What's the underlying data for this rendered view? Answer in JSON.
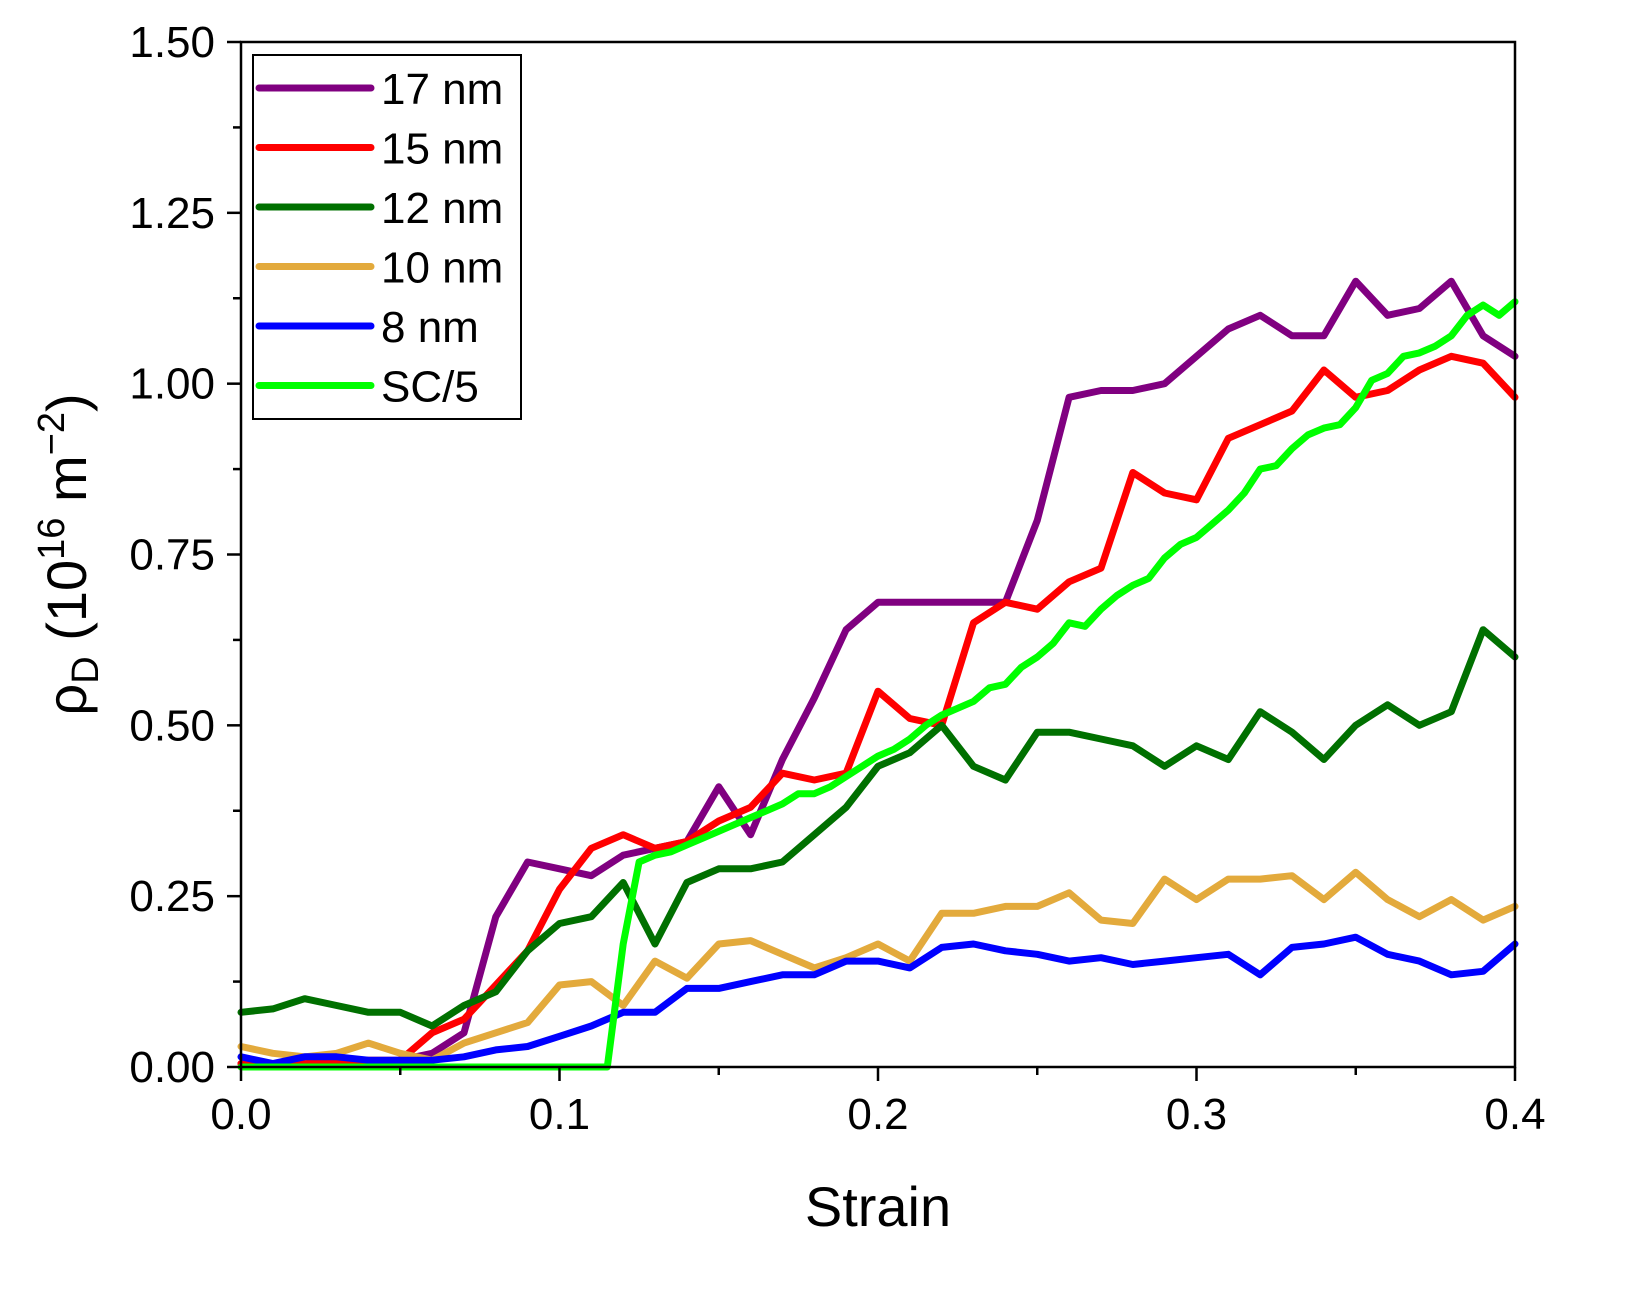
{
  "chart_data": {
    "type": "line",
    "title": "",
    "xlabel": "Strain",
    "ylabel": {
      "rho": "ρ",
      "sub": "D",
      "open": " (10",
      "exp": "16",
      "unit": " m",
      "unit_exp": "−2",
      "close": ")"
    },
    "xlim": [
      0.0,
      0.4
    ],
    "ylim": [
      0.0,
      1.5
    ],
    "xticks": [
      "0.0",
      "0.1",
      "0.2",
      "0.3",
      "0.4"
    ],
    "xtick_values": [
      0.0,
      0.1,
      0.2,
      0.3,
      0.4
    ],
    "yticks": [
      "0.00",
      "0.25",
      "0.50",
      "0.75",
      "1.00",
      "1.25",
      "1.50"
    ],
    "ytick_values": [
      0.0,
      0.25,
      0.5,
      0.75,
      1.0,
      1.25,
      1.5
    ],
    "grid": false,
    "legend_position": "top-left",
    "x": [
      0.0,
      0.01,
      0.02,
      0.03,
      0.04,
      0.05,
      0.06,
      0.07,
      0.08,
      0.09,
      0.1,
      0.11,
      0.12,
      0.13,
      0.14,
      0.15,
      0.16,
      0.17,
      0.18,
      0.19,
      0.2,
      0.21,
      0.22,
      0.23,
      0.24,
      0.25,
      0.26,
      0.27,
      0.28,
      0.29,
      0.3,
      0.31,
      0.32,
      0.33,
      0.34,
      0.35,
      0.36,
      0.37,
      0.38,
      0.39,
      0.4
    ],
    "series": [
      {
        "name": "17 nm",
        "color": "#800080",
        "x": [
          0.0,
          0.01,
          0.02,
          0.03,
          0.04,
          0.05,
          0.06,
          0.07,
          0.08,
          0.09,
          0.1,
          0.11,
          0.12,
          0.13,
          0.14,
          0.15,
          0.16,
          0.17,
          0.18,
          0.19,
          0.2,
          0.21,
          0.22,
          0.23,
          0.24,
          0.25,
          0.26,
          0.27,
          0.28,
          0.29,
          0.3,
          0.31,
          0.32,
          0.33,
          0.34,
          0.35,
          0.36,
          0.37,
          0.38,
          0.39,
          0.4
        ],
        "values": [
          0.005,
          0.005,
          0.003,
          0.01,
          0.002,
          0.01,
          0.02,
          0.05,
          0.22,
          0.3,
          0.29,
          0.28,
          0.31,
          0.32,
          0.33,
          0.41,
          0.34,
          0.45,
          0.54,
          0.64,
          0.68,
          0.68,
          0.68,
          0.68,
          0.68,
          0.8,
          0.98,
          0.99,
          0.99,
          1.0,
          1.04,
          1.08,
          1.1,
          1.07,
          1.07,
          1.15,
          1.1,
          1.11,
          1.15,
          1.07,
          1.04
        ]
      },
      {
        "name": "15 nm",
        "color": "#ff0000",
        "x": [
          0.0,
          0.01,
          0.02,
          0.03,
          0.04,
          0.05,
          0.06,
          0.07,
          0.08,
          0.09,
          0.1,
          0.11,
          0.12,
          0.13,
          0.14,
          0.15,
          0.16,
          0.17,
          0.18,
          0.19,
          0.2,
          0.21,
          0.22,
          0.23,
          0.24,
          0.25,
          0.26,
          0.27,
          0.28,
          0.29,
          0.3,
          0.31,
          0.32,
          0.33,
          0.34,
          0.35,
          0.36,
          0.37,
          0.38,
          0.39,
          0.4
        ],
        "values": [
          0.005,
          0.005,
          0.005,
          0.01,
          0.01,
          0.01,
          0.05,
          0.07,
          0.12,
          0.17,
          0.26,
          0.32,
          0.34,
          0.32,
          0.33,
          0.36,
          0.38,
          0.43,
          0.42,
          0.43,
          0.55,
          0.51,
          0.5,
          0.65,
          0.68,
          0.67,
          0.71,
          0.73,
          0.87,
          0.84,
          0.83,
          0.92,
          0.94,
          0.96,
          1.02,
          0.98,
          0.99,
          1.02,
          1.04,
          1.03,
          0.98
        ]
      },
      {
        "name": "12 nm",
        "color": "#007000",
        "x": [
          0.0,
          0.01,
          0.02,
          0.03,
          0.04,
          0.05,
          0.06,
          0.07,
          0.08,
          0.09,
          0.1,
          0.11,
          0.12,
          0.13,
          0.14,
          0.15,
          0.16,
          0.17,
          0.18,
          0.19,
          0.2,
          0.21,
          0.22,
          0.23,
          0.24,
          0.25,
          0.26,
          0.27,
          0.28,
          0.29,
          0.3,
          0.31,
          0.32,
          0.33,
          0.34,
          0.35,
          0.36,
          0.37,
          0.38,
          0.39,
          0.4
        ],
        "values": [
          0.08,
          0.085,
          0.1,
          0.09,
          0.08,
          0.08,
          0.06,
          0.09,
          0.11,
          0.17,
          0.21,
          0.22,
          0.27,
          0.18,
          0.27,
          0.29,
          0.29,
          0.3,
          0.34,
          0.38,
          0.44,
          0.46,
          0.5,
          0.44,
          0.42,
          0.49,
          0.49,
          0.48,
          0.47,
          0.44,
          0.47,
          0.45,
          0.52,
          0.49,
          0.45,
          0.5,
          0.53,
          0.5,
          0.52,
          0.64,
          0.6
        ]
      },
      {
        "name": "10 nm",
        "color": "#e3aa3c",
        "x": [
          0.0,
          0.01,
          0.02,
          0.03,
          0.04,
          0.05,
          0.06,
          0.07,
          0.08,
          0.09,
          0.1,
          0.11,
          0.12,
          0.13,
          0.14,
          0.15,
          0.16,
          0.17,
          0.18,
          0.19,
          0.2,
          0.21,
          0.22,
          0.23,
          0.24,
          0.25,
          0.26,
          0.27,
          0.28,
          0.29,
          0.3,
          0.31,
          0.32,
          0.33,
          0.34,
          0.35,
          0.36,
          0.37,
          0.38,
          0.39,
          0.4
        ],
        "values": [
          0.03,
          0.02,
          0.015,
          0.02,
          0.035,
          0.02,
          0.01,
          0.035,
          0.05,
          0.065,
          0.12,
          0.125,
          0.09,
          0.155,
          0.13,
          0.18,
          0.185,
          0.165,
          0.145,
          0.16,
          0.18,
          0.155,
          0.225,
          0.225,
          0.235,
          0.235,
          0.255,
          0.215,
          0.21,
          0.275,
          0.245,
          0.275,
          0.275,
          0.28,
          0.245,
          0.285,
          0.245,
          0.22,
          0.245,
          0.215,
          0.235
        ]
      },
      {
        "name": "8 nm",
        "color": "#0000ff",
        "x": [
          0.0,
          0.01,
          0.02,
          0.03,
          0.04,
          0.05,
          0.06,
          0.07,
          0.08,
          0.09,
          0.1,
          0.11,
          0.12,
          0.13,
          0.14,
          0.15,
          0.16,
          0.17,
          0.18,
          0.19,
          0.2,
          0.21,
          0.22,
          0.23,
          0.24,
          0.25,
          0.26,
          0.27,
          0.28,
          0.29,
          0.3,
          0.31,
          0.32,
          0.33,
          0.34,
          0.35,
          0.36,
          0.37,
          0.38,
          0.39,
          0.4
        ],
        "values": [
          0.015,
          0.005,
          0.015,
          0.015,
          0.01,
          0.01,
          0.01,
          0.015,
          0.025,
          0.03,
          0.045,
          0.06,
          0.08,
          0.08,
          0.115,
          0.115,
          0.125,
          0.135,
          0.135,
          0.155,
          0.155,
          0.145,
          0.175,
          0.18,
          0.17,
          0.165,
          0.155,
          0.16,
          0.15,
          0.155,
          0.16,
          0.165,
          0.135,
          0.175,
          0.18,
          0.19,
          0.165,
          0.155,
          0.135,
          0.14,
          0.18
        ]
      },
      {
        "name": "SC/5",
        "color": "#00ff00",
        "x": [
          0.0,
          0.05,
          0.1,
          0.115,
          0.12,
          0.125,
          0.13,
          0.135,
          0.14,
          0.145,
          0.15,
          0.155,
          0.16,
          0.165,
          0.17,
          0.175,
          0.18,
          0.185,
          0.19,
          0.195,
          0.2,
          0.205,
          0.21,
          0.215,
          0.22,
          0.225,
          0.23,
          0.235,
          0.24,
          0.245,
          0.25,
          0.255,
          0.26,
          0.265,
          0.27,
          0.275,
          0.28,
          0.285,
          0.29,
          0.295,
          0.3,
          0.305,
          0.31,
          0.315,
          0.32,
          0.325,
          0.33,
          0.335,
          0.34,
          0.345,
          0.35,
          0.355,
          0.36,
          0.365,
          0.37,
          0.375,
          0.38,
          0.385,
          0.39,
          0.395,
          0.4
        ],
        "values": [
          0.0,
          0.0,
          0.0,
          0.0,
          0.18,
          0.3,
          0.31,
          0.315,
          0.325,
          0.335,
          0.345,
          0.355,
          0.365,
          0.375,
          0.385,
          0.4,
          0.4,
          0.41,
          0.425,
          0.44,
          0.455,
          0.465,
          0.48,
          0.5,
          0.515,
          0.525,
          0.535,
          0.555,
          0.56,
          0.585,
          0.6,
          0.62,
          0.65,
          0.645,
          0.67,
          0.69,
          0.705,
          0.715,
          0.745,
          0.765,
          0.775,
          0.795,
          0.815,
          0.84,
          0.875,
          0.88,
          0.905,
          0.925,
          0.935,
          0.94,
          0.965,
          1.005,
          1.015,
          1.04,
          1.045,
          1.055,
          1.07,
          1.1,
          1.115,
          1.1,
          1.12
        ]
      }
    ]
  }
}
